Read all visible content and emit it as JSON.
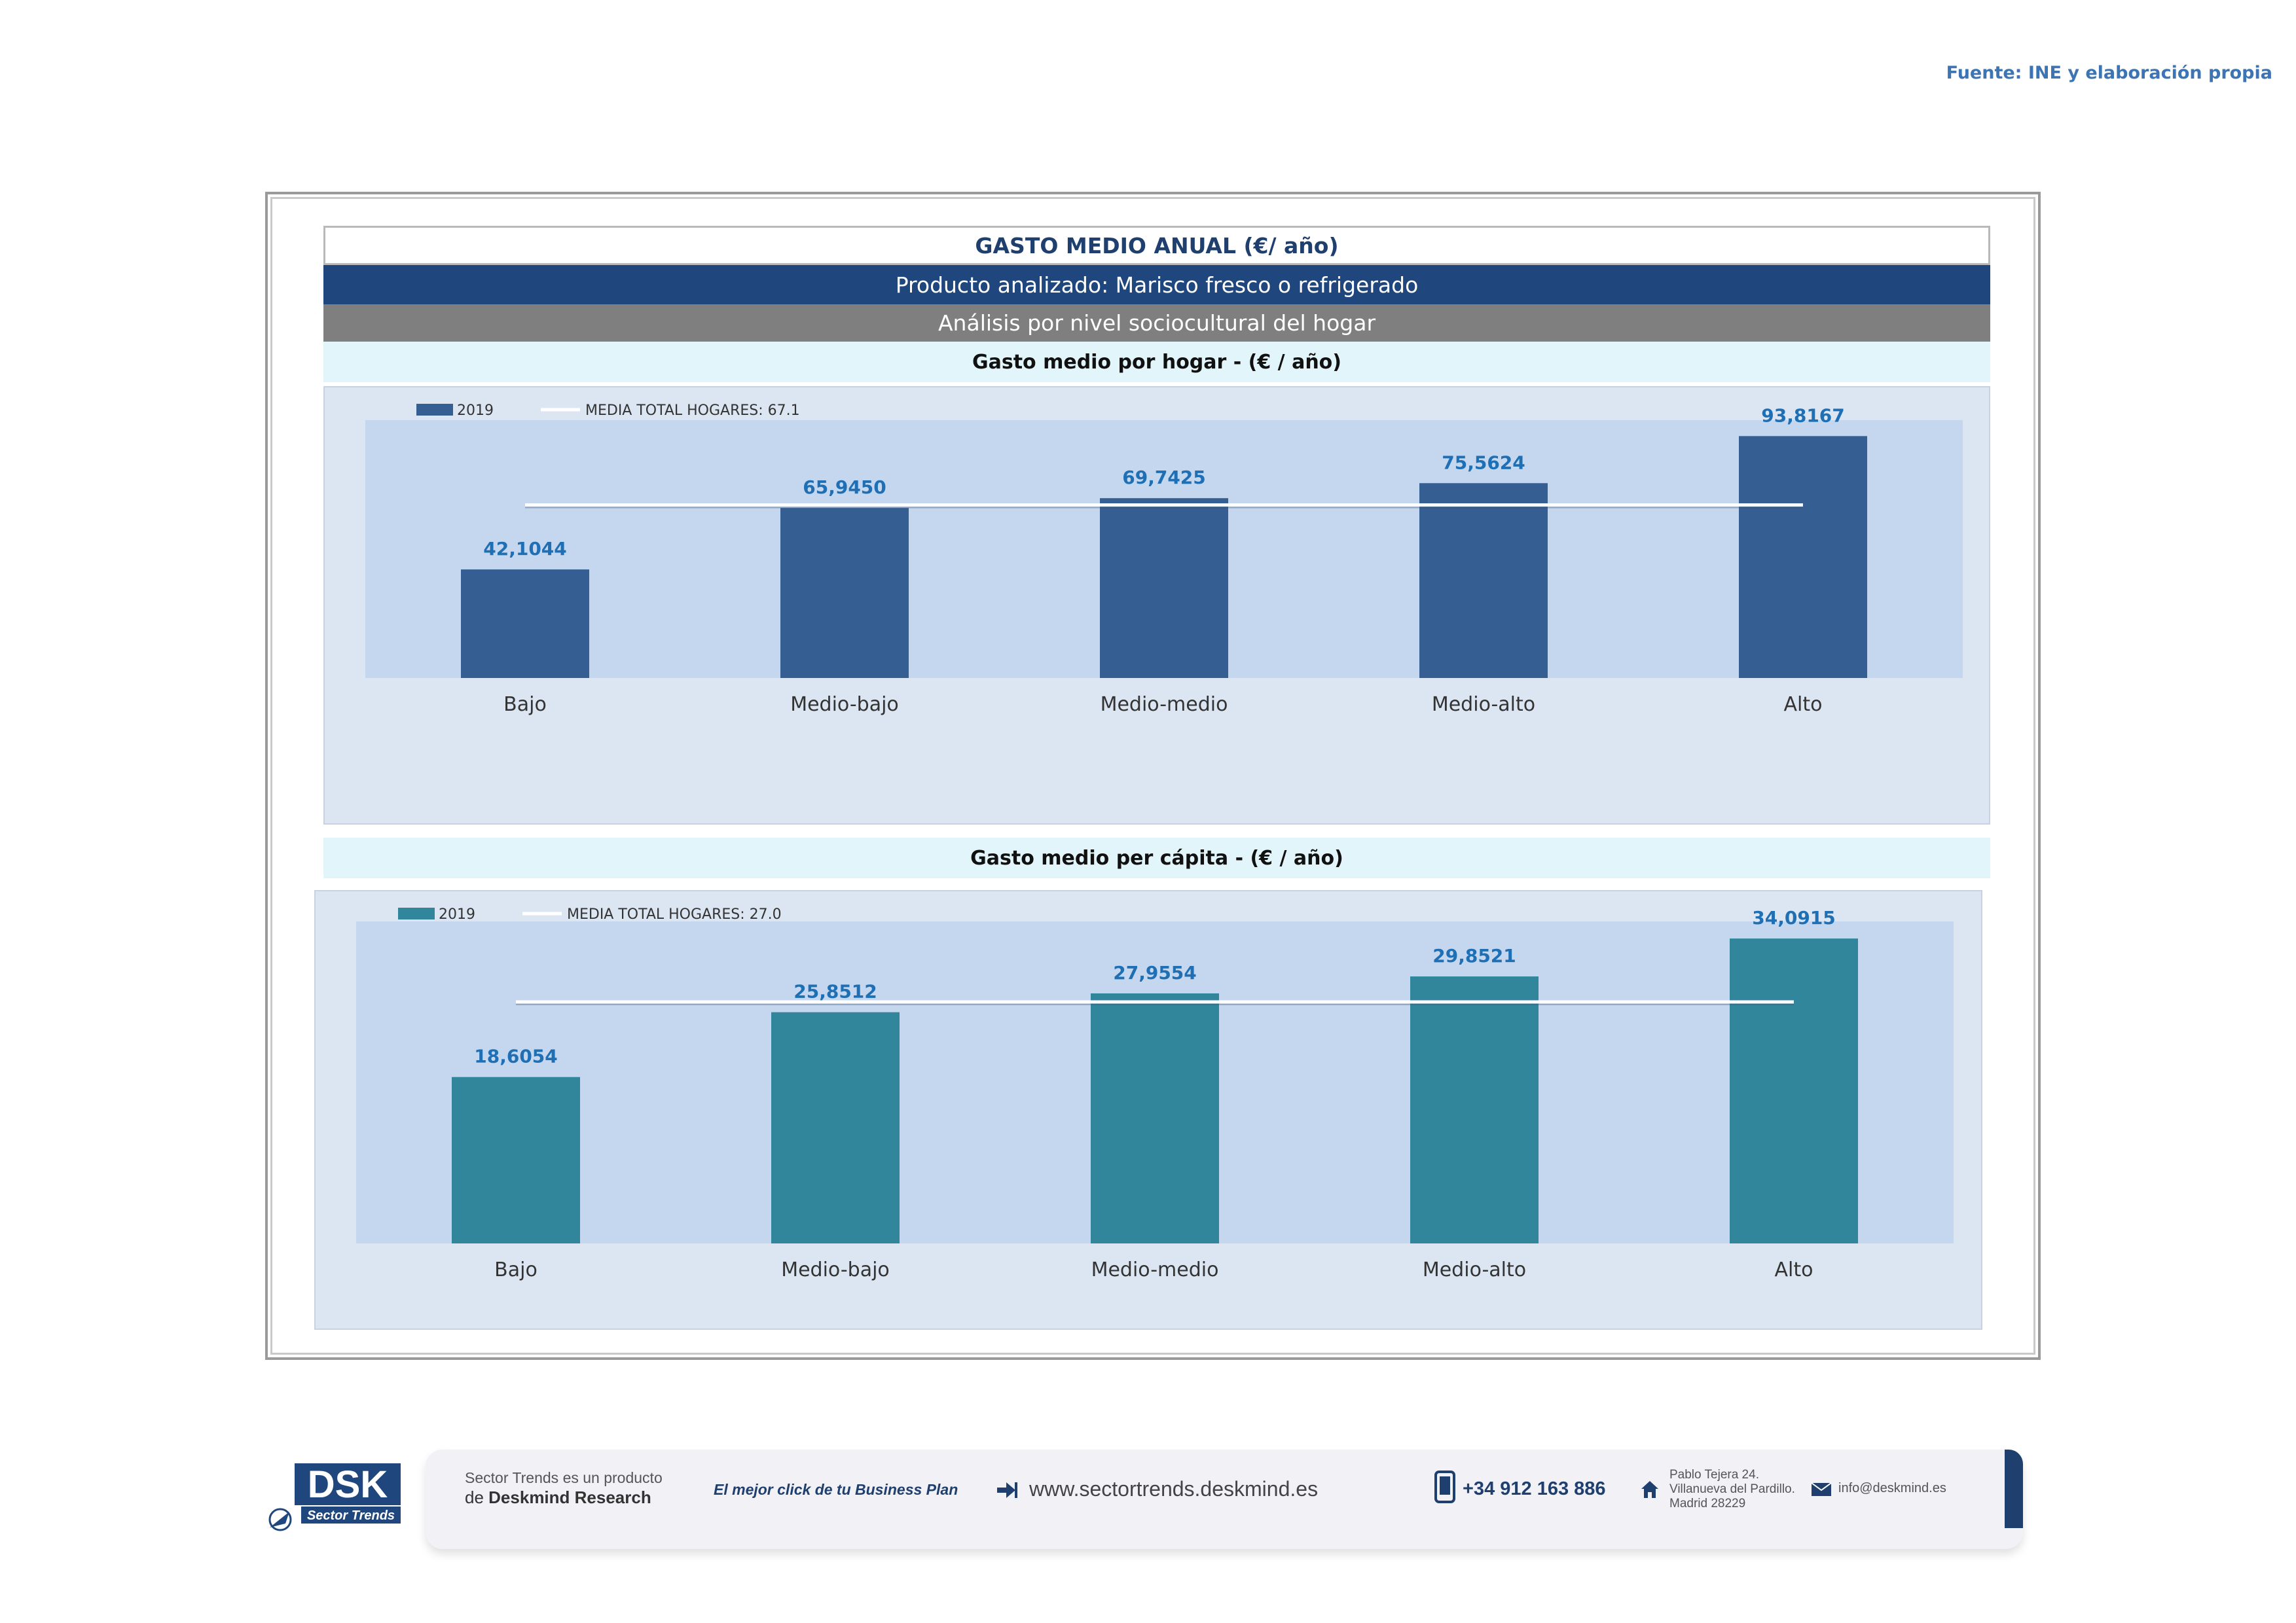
{
  "source": "Fuente: INE y elaboración propia",
  "title": "GASTO MEDIO ANUAL (€/ año)",
  "product": "Producto analizado: Marisco fresco o refrigerado",
  "analysis": "Análisis por nivel sociocultural del hogar",
  "colors": {
    "bar_household": "#355f93",
    "bar_capita": "#31869b",
    "label": "#1f6fb5",
    "mean_line": "#ffffff"
  },
  "chart_data": [
    {
      "type": "bar",
      "title": "Gasto medio por hogar -  (€ / año)",
      "categories": [
        "Bajo",
        "Medio-bajo",
        "Medio-medio",
        "Medio-alto",
        "Alto"
      ],
      "series": [
        {
          "name": "2019",
          "values": [
            42.1044,
            65.945,
            69.7425,
            75.5624,
            93.8167
          ],
          "labels": [
            "42,1044",
            "65,9450",
            "69,7425",
            "75,5624",
            "93,8167"
          ]
        }
      ],
      "mean": {
        "label": "MEDIA TOTAL  HOGARES:",
        "value": 67.1,
        "value_text": "67.1"
      },
      "ylim": [
        0,
        100
      ],
      "legend": "top-left",
      "grid": false
    },
    {
      "type": "bar",
      "title": "Gasto medio per cápita -  (€ / año)",
      "categories": [
        "Bajo",
        "Medio-bajo",
        "Medio-medio",
        "Medio-alto",
        "Alto"
      ],
      "series": [
        {
          "name": "2019",
          "values": [
            18.6054,
            25.8512,
            27.9554,
            29.8521,
            34.0915
          ],
          "labels": [
            "18,6054",
            "25,8512",
            "27,9554",
            "29,8521",
            "34,0915"
          ]
        }
      ],
      "mean": {
        "label": "MEDIA TOTAL  HOGARES:",
        "value": 27.0,
        "value_text": "27.0"
      },
      "ylim": [
        0,
        36
      ],
      "legend": "top-left",
      "grid": false
    }
  ],
  "footer": {
    "logo_text": "DSK",
    "logo_sub": "Sector Trends",
    "product_line1": "Sector Trends es un producto",
    "product_line2_prefix": "de ",
    "product_line2_brand": "Deskmind Research",
    "slogan": "El mejor click de tu Business Plan",
    "website": "www.sectortrends.deskmind.es",
    "phone": "+34 912 163 886",
    "address_line1": "Pablo Tejera 24.",
    "address_line2": "Villanueva del Pardillo.",
    "address_line3": "Madrid 28229",
    "email": "info@deskmind.es",
    "icons": [
      "arrow-link-icon",
      "phone-icon",
      "home-icon",
      "mail-icon"
    ]
  }
}
